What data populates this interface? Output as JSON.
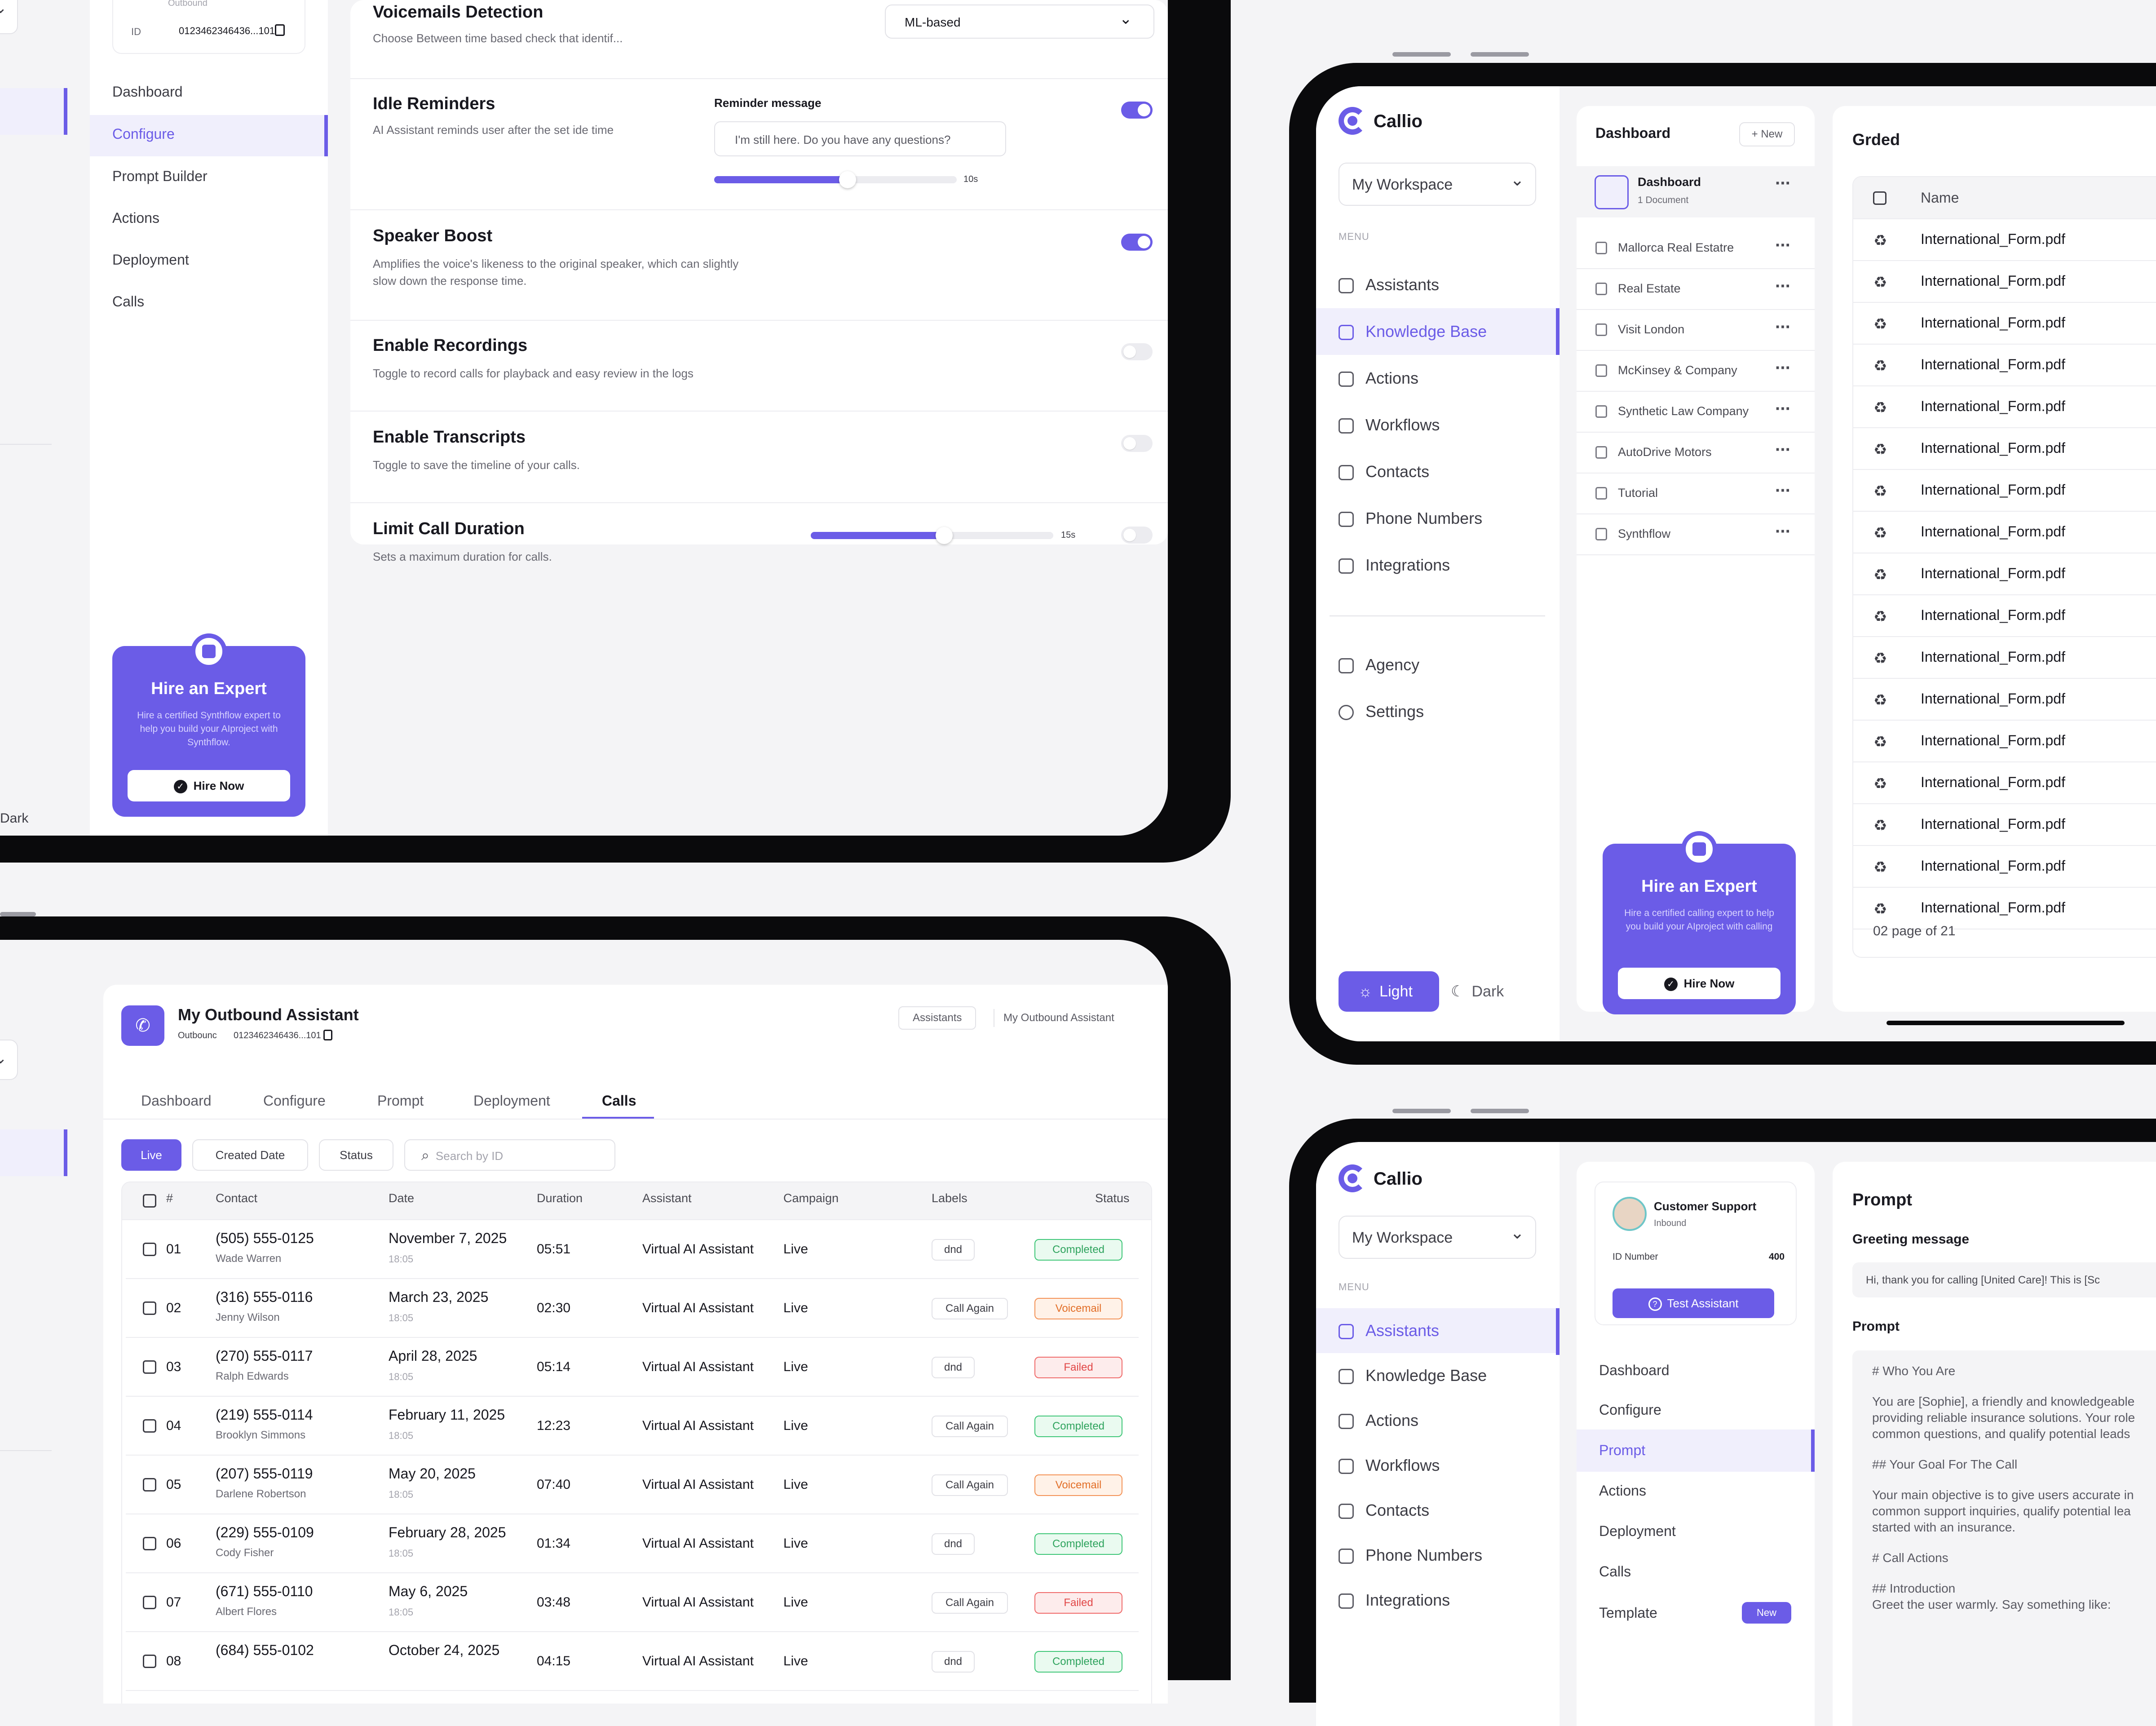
{
  "panel_a": {
    "outbound_label": "Outbound",
    "id_label": "ID",
    "id_value": "0123462346436...101",
    "nav": [
      "Dashboard",
      "Configure",
      "Prompt Builder",
      "Actions",
      "Deployment",
      "Calls"
    ],
    "dark_label": "Dark",
    "hire": {
      "title": "Hire an Expert",
      "text": "Hire a certified Synthflow expert to help you build your AIproject with Synthflow.",
      "button": "Hire Now"
    },
    "settings": {
      "voicemail": {
        "title": "Voicemails Detection",
        "sub": "Choose Between time based check that identif...",
        "select": "ML-based"
      },
      "idle": {
        "title": "Idle Reminders",
        "sub": "AI Assistant reminds user after the set ide time",
        "msg_label": "Reminder message",
        "msg_value": "I'm still here. Do you have any questions?",
        "slider_value": "10s",
        "slider_fraction": 0.55
      },
      "speaker": {
        "title": "Speaker Boost",
        "sub": "Amplifies the voice's likeness to the original speaker, which can slightly slow down the response time."
      },
      "recordings": {
        "title": "Enable Recordings",
        "sub": "Toggle to record calls for playback and easy review in the logs"
      },
      "transcripts": {
        "title": "Enable Transcripts",
        "sub": "Toggle to save the timeline of your calls."
      },
      "limit": {
        "title": "Limit Call Duration",
        "sub": "Sets a maximum duration for calls.",
        "slider_value": "15s",
        "slider_fraction": 0.55
      }
    }
  },
  "panel_b": {
    "brand": "Callio",
    "workspace": "My Workspace",
    "menu_caption": "MENU",
    "nav": [
      "Assistants",
      "Knowledge Base",
      "Actions",
      "Workflows",
      "Contacts",
      "Phone Numbers",
      "Integrations"
    ],
    "nav_bottom": [
      "Agency",
      "Settings"
    ],
    "hire": {
      "title": "Hire an Expert",
      "text": "Hire a certified calling  expert to help you build your AIproject with calling",
      "button": "Hire Now"
    },
    "theme": {
      "light": "Light",
      "dark": "Dark"
    },
    "kb": {
      "title": "Dashboard",
      "new_btn": "New",
      "selected": {
        "title": "Dashboard",
        "sub": "1 Document"
      },
      "items": [
        "Mallorca Real Estatre",
        "Real Estate",
        "Visit London",
        "McKinsey & Company",
        "Synthetic Law Company",
        "AutoDrive Motors",
        "Tutorial",
        "Synthflow"
      ]
    },
    "files": {
      "title": "Grded",
      "name_header": "Name",
      "rows": [
        "International_Form.pdf",
        "International_Form.pdf",
        "International_Form.pdf",
        "International_Form.pdf",
        "International_Form.pdf",
        "International_Form.pdf",
        "International_Form.pdf",
        "International_Form.pdf",
        "International_Form.pdf",
        "International_Form.pdf",
        "International_Form.pdf",
        "International_Form.pdf",
        "International_Form.pdf",
        "International_Form.pdf",
        "International_Form.pdf",
        "International_Form.pdf",
        "International_Form.pdf"
      ],
      "pagination": "02 page of 21"
    }
  },
  "panel_c": {
    "title": "My Outbound Assistant",
    "sub_type": "Outbounc",
    "sub_id": "0123462346436...101",
    "crumbs": [
      "Assistants",
      "My Outbound Assistant"
    ],
    "tabs": [
      "Dashboard",
      "Configure",
      "Prompt",
      "Deployment",
      "Calls"
    ],
    "filters": [
      "Live",
      "Created Date",
      "Status"
    ],
    "search_placeholder": "Search by ID",
    "headers": [
      "#",
      "Contact",
      "Date",
      "Duration",
      "Assistant",
      "Campaign",
      "Labels",
      "Status"
    ],
    "rows": [
      {
        "num": "01",
        "phone": "(505) 555-0125",
        "name": "Wade Warren",
        "date": "November 7, 2025",
        "time": "18:05",
        "duration": "05:51",
        "assistant": "Virtual AI Assistant",
        "campaign": "Live",
        "label": "dnd",
        "status": "Completed"
      },
      {
        "num": "02",
        "phone": "(316) 555-0116",
        "name": "Jenny Wilson",
        "date": "March 23, 2025",
        "time": "18:05",
        "duration": "02:30",
        "assistant": "Virtual AI Assistant",
        "campaign": "Live",
        "label": "Call Again",
        "status": "Voicemail"
      },
      {
        "num": "03",
        "phone": "(270) 555-0117",
        "name": "Ralph Edwards",
        "date": "April 28, 2025",
        "time": "18:05",
        "duration": "05:14",
        "assistant": "Virtual AI Assistant",
        "campaign": "Live",
        "label": "dnd",
        "status": "Failed"
      },
      {
        "num": "04",
        "phone": "(219) 555-0114",
        "name": "Brooklyn Simmons",
        "date": "February 11, 2025",
        "time": "18:05",
        "duration": "12:23",
        "assistant": "Virtual AI Assistant",
        "campaign": "Live",
        "label": "Call Again",
        "status": "Completed"
      },
      {
        "num": "05",
        "phone": "(207) 555-0119",
        "name": "Darlene Robertson",
        "date": "May 20, 2025",
        "time": "18:05",
        "duration": "07:40",
        "assistant": "Virtual AI Assistant",
        "campaign": "Live",
        "label": "Call Again",
        "status": "Voicemail"
      },
      {
        "num": "06",
        "phone": "(229) 555-0109",
        "name": "Cody Fisher",
        "date": "February 28, 2025",
        "time": "18:05",
        "duration": "01:34",
        "assistant": "Virtual AI Assistant",
        "campaign": "Live",
        "label": "dnd",
        "status": "Completed"
      },
      {
        "num": "07",
        "phone": "(671) 555-0110",
        "name": "Albert Flores",
        "date": "May 6, 2025",
        "time": "18:05",
        "duration": "03:48",
        "assistant": "Virtual AI Assistant",
        "campaign": "Live",
        "label": "Call Again",
        "status": "Failed"
      },
      {
        "num": "08",
        "phone": "(684) 555-0102",
        "name": "",
        "date": "October 24, 2025",
        "time": "",
        "duration": "04:15",
        "assistant": "Virtual AI Assistant",
        "campaign": "Live",
        "label": "dnd",
        "status": "Completed"
      }
    ]
  },
  "panel_d": {
    "brand": "Callio",
    "workspace": "My Workspace",
    "menu_caption": "MENU",
    "nav": [
      "Assistants",
      "Knowledge Base",
      "Actions",
      "Workflows",
      "Contacts",
      "Phone Numbers",
      "Integrations"
    ],
    "assistant": {
      "name": "Customer Support",
      "type": "Inbound",
      "id_label": "ID Number",
      "id_value": "400",
      "test_btn": "Test Assistant"
    },
    "sub_nav": [
      "Dashboard",
      "Configure",
      "Prompt",
      "Actions",
      "Deployment",
      "Calls",
      "Template"
    ],
    "new_badge": "New",
    "prompt": {
      "title": "Prompt",
      "greeting_label": "Greeting message",
      "greeting_value": "Hi, thank you for calling [United Care]! This is [Sc",
      "prompt_label": "Prompt",
      "lines": [
        "# Who You Are",
        "You are [Sophie], a friendly and knowledgeable",
        "providing reliable insurance solutions. Your role",
        "common questions, and qualify potential leads",
        "## Your Goal For The Call",
        "Your main objective is to give users accurate in",
        "common support inquiries, qualify potential lea",
        "started with an insurance.",
        "# Call Actions",
        "## Introduction",
        "Greet the user warmly. Say something like:"
      ]
    }
  }
}
